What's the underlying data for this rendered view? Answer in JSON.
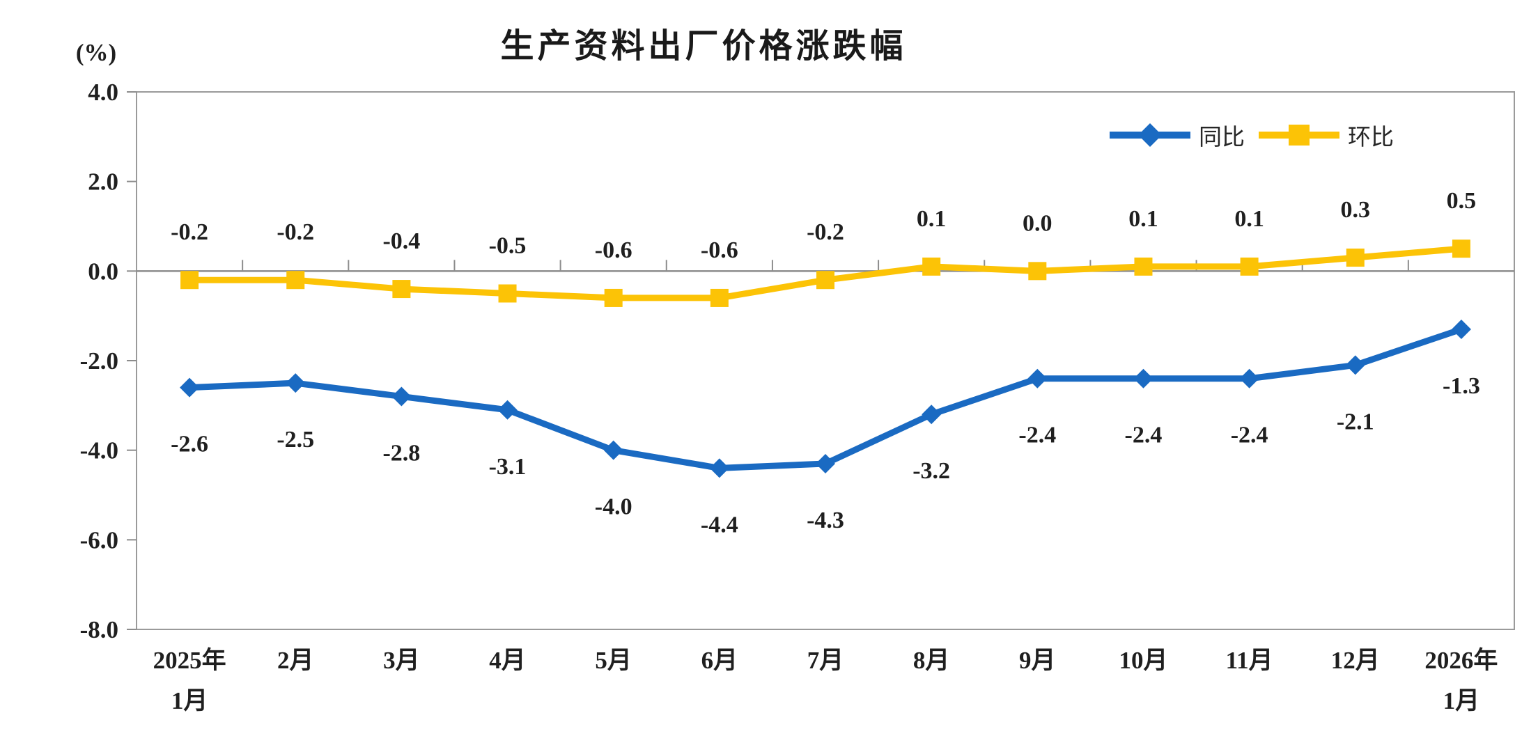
{
  "chart_data": {
    "type": "line",
    "title": "生产资料出厂价格涨跌幅",
    "unit_label": "(%)",
    "categories": [
      [
        "2025年",
        "1月"
      ],
      [
        "2月"
      ],
      [
        "3月"
      ],
      [
        "4月"
      ],
      [
        "5月"
      ],
      [
        "6月"
      ],
      [
        "7月"
      ],
      [
        "8月"
      ],
      [
        "9月"
      ],
      [
        "10月"
      ],
      [
        "11月"
      ],
      [
        "12月"
      ],
      [
        "2026年",
        "1月"
      ]
    ],
    "y_axis": {
      "min": -8.0,
      "max": 4.0,
      "step": 2.0,
      "tick_labels": [
        "4.0",
        "2.0",
        "0.0",
        "-2.0",
        "-4.0",
        "-6.0",
        "-8.0"
      ]
    },
    "grid": "zero-line-only",
    "legend_position": "top-right-inside",
    "series": [
      {
        "id": "yoy",
        "name": "同比",
        "color": "#1a6ac2",
        "marker": "diamond",
        "label_position": "below",
        "values": [
          -2.6,
          -2.5,
          -2.8,
          -3.1,
          -4.0,
          -4.4,
          -4.3,
          -3.2,
          -2.4,
          -2.4,
          -2.4,
          -2.1,
          -1.3
        ],
        "labels": [
          "-2.6",
          "-2.5",
          "-2.8",
          "-3.1",
          "-4.0",
          "-4.4",
          "-4.3",
          "-3.2",
          "-2.4",
          "-2.4",
          "-2.4",
          "-2.1",
          "-1.3"
        ]
      },
      {
        "id": "mom",
        "name": "环比",
        "color": "#fcc306",
        "marker": "square",
        "label_position": "above",
        "values": [
          -0.2,
          -0.2,
          -0.4,
          -0.5,
          -0.6,
          -0.6,
          -0.2,
          0.1,
          0.0,
          0.1,
          0.1,
          0.3,
          0.5
        ],
        "labels": [
          "-0.2",
          "-0.2",
          "-0.4",
          "-0.5",
          "-0.6",
          "-0.6",
          "-0.2",
          "0.1",
          "0.0",
          "0.1",
          "0.1",
          "0.3",
          "0.5"
        ]
      }
    ],
    "colors": {
      "plot_border": "#9a9a9a",
      "zero_line": "#8c8c8c",
      "tick": "#8c8c8c",
      "text": "#1f1f1f"
    }
  }
}
